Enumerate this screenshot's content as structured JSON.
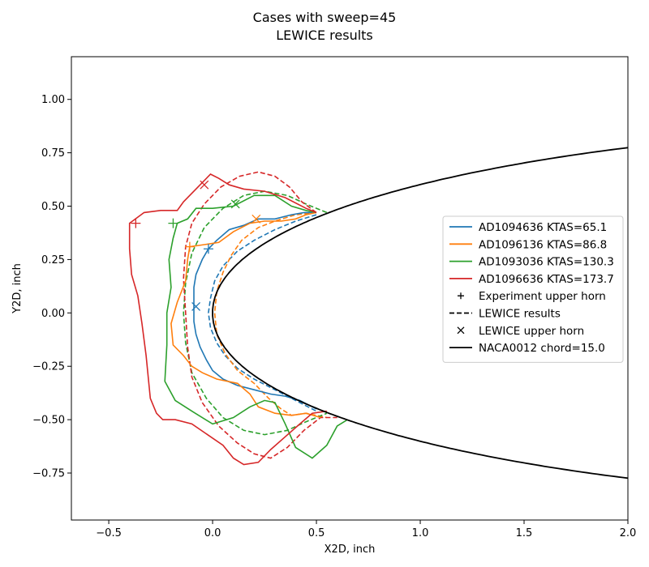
{
  "chart_data": {
    "type": "line",
    "title": "Cases with sweep=45",
    "subtitle": "LEWICE results",
    "xlabel": "X2D, inch",
    "ylabel": "Y2D, inch",
    "xlim": [
      -0.68,
      2.0
    ],
    "ylim": [
      -0.97,
      1.2
    ],
    "xticks": [
      "−0.5",
      "0.0",
      "0.5",
      "1.0",
      "1.5",
      "2.0"
    ],
    "xtick_values": [
      -0.5,
      0.0,
      0.5,
      1.0,
      1.5,
      2.0
    ],
    "yticks": [
      "−0.75",
      "−0.50",
      "−0.25",
      "0.00",
      "0.25",
      "0.50",
      "0.75",
      "1.00"
    ],
    "ytick_values": [
      -0.75,
      -0.5,
      -0.25,
      0.0,
      0.25,
      0.5,
      0.75,
      1.0
    ],
    "grid": false,
    "legend_position": "right",
    "airfoil": {
      "name": "NACA0012 chord=15.0",
      "color": "#000000",
      "chord": 15.0,
      "x_max": 2.0
    },
    "series": [
      {
        "name": "AD1094636 KTAS=65.1",
        "color": "#1f77b4",
        "experiment_shape": [
          [
            0.5,
            0.47
          ],
          [
            0.44,
            0.47
          ],
          [
            0.38,
            0.46
          ],
          [
            0.3,
            0.44
          ],
          [
            0.22,
            0.44
          ],
          [
            0.15,
            0.41
          ],
          [
            0.08,
            0.39
          ],
          [
            0.02,
            0.34
          ],
          [
            -0.02,
            0.3
          ],
          [
            -0.05,
            0.25
          ],
          [
            -0.08,
            0.18
          ],
          [
            -0.09,
            0.12
          ],
          [
            -0.09,
            0.04
          ],
          [
            -0.09,
            -0.04
          ],
          [
            -0.08,
            -0.1
          ],
          [
            -0.06,
            -0.16
          ],
          [
            -0.03,
            -0.22
          ],
          [
            0.0,
            -0.27
          ],
          [
            0.05,
            -0.31
          ],
          [
            0.12,
            -0.34
          ],
          [
            0.2,
            -0.36
          ],
          [
            0.28,
            -0.38
          ],
          [
            0.35,
            -0.39
          ],
          [
            0.42,
            -0.41
          ],
          [
            0.5,
            -0.45
          ]
        ],
        "lewice_shape": [
          [
            0.5,
            0.46
          ],
          [
            0.4,
            0.43
          ],
          [
            0.3,
            0.39
          ],
          [
            0.2,
            0.34
          ],
          [
            0.12,
            0.29
          ],
          [
            0.05,
            0.22
          ],
          [
            0.01,
            0.15
          ],
          [
            -0.01,
            0.07
          ],
          [
            -0.02,
            0.0
          ],
          [
            -0.01,
            -0.07
          ],
          [
            0.02,
            -0.14
          ],
          [
            0.06,
            -0.2
          ],
          [
            0.12,
            -0.26
          ],
          [
            0.2,
            -0.31
          ],
          [
            0.3,
            -0.36
          ],
          [
            0.4,
            -0.41
          ],
          [
            0.5,
            -0.46
          ]
        ],
        "experiment_upper_horn": [
          -0.02,
          0.3
        ],
        "lewice_upper_horn": [
          -0.08,
          0.03
        ]
      },
      {
        "name": "AD1096136 KTAS=86.8",
        "color": "#ff7f0e",
        "experiment_shape": [
          [
            0.5,
            0.47
          ],
          [
            0.45,
            0.46
          ],
          [
            0.4,
            0.44
          ],
          [
            0.33,
            0.43
          ],
          [
            0.25,
            0.43
          ],
          [
            0.18,
            0.42
          ],
          [
            0.1,
            0.38
          ],
          [
            0.03,
            0.33
          ],
          [
            -0.04,
            0.32
          ],
          [
            -0.11,
            0.31
          ],
          [
            -0.12,
            0.25
          ],
          [
            -0.13,
            0.15
          ],
          [
            -0.17,
            0.05
          ],
          [
            -0.2,
            -0.05
          ],
          [
            -0.19,
            -0.15
          ],
          [
            -0.14,
            -0.2
          ],
          [
            -0.1,
            -0.25
          ],
          [
            -0.05,
            -0.28
          ],
          [
            0.02,
            -0.31
          ],
          [
            0.12,
            -0.33
          ],
          [
            0.18,
            -0.38
          ],
          [
            0.22,
            -0.44
          ],
          [
            0.3,
            -0.47
          ],
          [
            0.38,
            -0.48
          ],
          [
            0.45,
            -0.47
          ],
          [
            0.52,
            -0.49
          ]
        ],
        "lewice_shape": [
          [
            0.5,
            0.47
          ],
          [
            0.4,
            0.46
          ],
          [
            0.3,
            0.43
          ],
          [
            0.22,
            0.4
          ],
          [
            0.14,
            0.34
          ],
          [
            0.09,
            0.27
          ],
          [
            0.05,
            0.19
          ],
          [
            0.02,
            0.1
          ],
          [
            0.01,
            0.0
          ],
          [
            0.02,
            -0.1
          ],
          [
            0.06,
            -0.19
          ],
          [
            0.12,
            -0.27
          ],
          [
            0.2,
            -0.33
          ],
          [
            0.27,
            -0.4
          ],
          [
            0.33,
            -0.45
          ],
          [
            0.38,
            -0.48
          ],
          [
            0.45,
            -0.47
          ],
          [
            0.55,
            -0.49
          ]
        ],
        "experiment_upper_horn": [
          -0.11,
          0.31
        ],
        "lewice_upper_horn": [
          0.21,
          0.44
        ]
      },
      {
        "name": "AD1093036 KTAS=130.3",
        "color": "#2ca02c",
        "experiment_shape": [
          [
            0.5,
            0.47
          ],
          [
            0.45,
            0.48
          ],
          [
            0.38,
            0.5
          ],
          [
            0.3,
            0.55
          ],
          [
            0.2,
            0.55
          ],
          [
            0.1,
            0.5
          ],
          [
            0.0,
            0.49
          ],
          [
            -0.08,
            0.49
          ],
          [
            -0.12,
            0.44
          ],
          [
            -0.17,
            0.42
          ],
          [
            -0.19,
            0.35
          ],
          [
            -0.21,
            0.25
          ],
          [
            -0.2,
            0.12
          ],
          [
            -0.22,
            0.0
          ],
          [
            -0.22,
            -0.15
          ],
          [
            -0.23,
            -0.32
          ],
          [
            -0.18,
            -0.41
          ],
          [
            -0.1,
            -0.46
          ],
          [
            0.0,
            -0.52
          ],
          [
            0.1,
            -0.49
          ],
          [
            0.18,
            -0.44
          ],
          [
            0.25,
            -0.41
          ],
          [
            0.3,
            -0.42
          ],
          [
            0.35,
            -0.52
          ],
          [
            0.4,
            -0.63
          ],
          [
            0.48,
            -0.68
          ],
          [
            0.55,
            -0.62
          ],
          [
            0.6,
            -0.53
          ],
          [
            0.65,
            -0.5
          ]
        ],
        "lewice_shape": [
          [
            0.55,
            0.47
          ],
          [
            0.45,
            0.51
          ],
          [
            0.36,
            0.55
          ],
          [
            0.25,
            0.57
          ],
          [
            0.15,
            0.55
          ],
          [
            0.05,
            0.49
          ],
          [
            -0.04,
            0.4
          ],
          [
            -0.1,
            0.28
          ],
          [
            -0.13,
            0.14
          ],
          [
            -0.14,
            0.0
          ],
          [
            -0.13,
            -0.14
          ],
          [
            -0.1,
            -0.28
          ],
          [
            -0.03,
            -0.4
          ],
          [
            0.05,
            -0.49
          ],
          [
            0.15,
            -0.55
          ],
          [
            0.25,
            -0.57
          ],
          [
            0.36,
            -0.55
          ],
          [
            0.45,
            -0.51
          ],
          [
            0.55,
            -0.47
          ]
        ],
        "experiment_upper_horn": [
          -0.19,
          0.42
        ],
        "lewice_upper_horn": [
          0.11,
          0.51
        ]
      },
      {
        "name": "AD1096636 KTAS=173.7",
        "color": "#d62728",
        "experiment_shape": [
          [
            0.5,
            0.47
          ],
          [
            0.45,
            0.49
          ],
          [
            0.35,
            0.54
          ],
          [
            0.25,
            0.57
          ],
          [
            0.15,
            0.58
          ],
          [
            0.08,
            0.6
          ],
          [
            0.03,
            0.63
          ],
          [
            -0.01,
            0.65
          ],
          [
            -0.07,
            0.59
          ],
          [
            -0.14,
            0.52
          ],
          [
            -0.17,
            0.48
          ],
          [
            -0.25,
            0.48
          ],
          [
            -0.33,
            0.47
          ],
          [
            -0.4,
            0.42
          ],
          [
            -0.4,
            0.3
          ],
          [
            -0.39,
            0.18
          ],
          [
            -0.36,
            0.08
          ],
          [
            -0.34,
            -0.05
          ],
          [
            -0.32,
            -0.2
          ],
          [
            -0.31,
            -0.3
          ],
          [
            -0.3,
            -0.4
          ],
          [
            -0.27,
            -0.47
          ],
          [
            -0.24,
            -0.5
          ],
          [
            -0.18,
            -0.5
          ],
          [
            -0.1,
            -0.52
          ],
          [
            -0.04,
            -0.56
          ],
          [
            0.05,
            -0.62
          ],
          [
            0.1,
            -0.68
          ],
          [
            0.15,
            -0.71
          ],
          [
            0.22,
            -0.7
          ],
          [
            0.28,
            -0.64
          ],
          [
            0.35,
            -0.58
          ],
          [
            0.42,
            -0.52
          ],
          [
            0.48,
            -0.47
          ],
          [
            0.55,
            -0.46
          ]
        ],
        "lewice_shape": [
          [
            0.5,
            0.47
          ],
          [
            0.43,
            0.52
          ],
          [
            0.37,
            0.59
          ],
          [
            0.3,
            0.64
          ],
          [
            0.22,
            0.66
          ],
          [
            0.13,
            0.64
          ],
          [
            0.04,
            0.59
          ],
          [
            -0.04,
            0.51
          ],
          [
            -0.1,
            0.42
          ],
          [
            -0.13,
            0.31
          ],
          [
            -0.14,
            0.16
          ],
          [
            -0.13,
            0.0
          ],
          [
            -0.12,
            -0.16
          ],
          [
            -0.1,
            -0.3
          ],
          [
            -0.05,
            -0.42
          ],
          [
            0.03,
            -0.53
          ],
          [
            0.12,
            -0.61
          ],
          [
            0.2,
            -0.66
          ],
          [
            0.28,
            -0.68
          ],
          [
            0.36,
            -0.63
          ],
          [
            0.44,
            -0.55
          ],
          [
            0.52,
            -0.49
          ],
          [
            0.6,
            -0.49
          ]
        ],
        "experiment_upper_horn": [
          -0.37,
          0.42
        ],
        "lewice_upper_horn": [
          -0.04,
          0.6
        ]
      }
    ],
    "legend_extra": [
      {
        "label": "Experiment upper horn",
        "marker": "+"
      },
      {
        "label": "LEWICE results",
        "marker": "dashed"
      },
      {
        "label": "LEWICE upper horn",
        "marker": "x"
      }
    ]
  }
}
